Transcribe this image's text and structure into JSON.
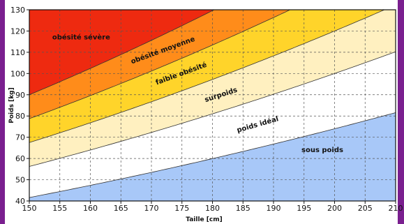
{
  "chart_data": {
    "type": "area",
    "xlabel": "Taille [cm]",
    "ylabel": "Poids [kg]",
    "xlim": [
      150,
      210
    ],
    "ylim": [
      40,
      130
    ],
    "x_ticks": [
      150,
      155,
      160,
      165,
      170,
      175,
      180,
      185,
      190,
      195,
      200,
      205,
      210
    ],
    "y_ticks": [
      40,
      50,
      60,
      70,
      80,
      90,
      100,
      110,
      120,
      130
    ],
    "grid": true,
    "bmi_thresholds": [
      18.5,
      25,
      30,
      35,
      40
    ],
    "zones": [
      {
        "label": "sous poids",
        "bmi_max": 18.5,
        "color": "#a8c8f8"
      },
      {
        "label": "poids idéal",
        "bmi_min": 18.5,
        "bmi_max": 25,
        "color": "#ffffff"
      },
      {
        "label": "surpoids",
        "bmi_min": 25,
        "bmi_max": 30,
        "color": "#fff0c0"
      },
      {
        "label": "faible obésité",
        "bmi_min": 30,
        "bmi_max": 35,
        "color": "#ffd42a"
      },
      {
        "label": "obésité moyenne",
        "bmi_min": 35,
        "bmi_max": 40,
        "color": "#ff8c1a"
      },
      {
        "label": "obésité sévère",
        "bmi_min": 40,
        "color": "#ee2a10"
      }
    ],
    "zone_label_positions": [
      {
        "label": "sous poids",
        "x": 198,
        "y": 63,
        "angle": 0
      },
      {
        "label": "poids idéal",
        "x": 187.5,
        "y": 75,
        "angle": -16
      },
      {
        "label": "surpoids",
        "x": 181.5,
        "y": 89,
        "angle": -18
      },
      {
        "label": "faible obésité",
        "x": 175,
        "y": 99,
        "angle": -20
      },
      {
        "label": "obésité moyenne",
        "x": 172,
        "y": 110,
        "angle": -20
      },
      {
        "label": "obésité sévère",
        "x": 158.5,
        "y": 116,
        "angle": 0
      }
    ]
  }
}
